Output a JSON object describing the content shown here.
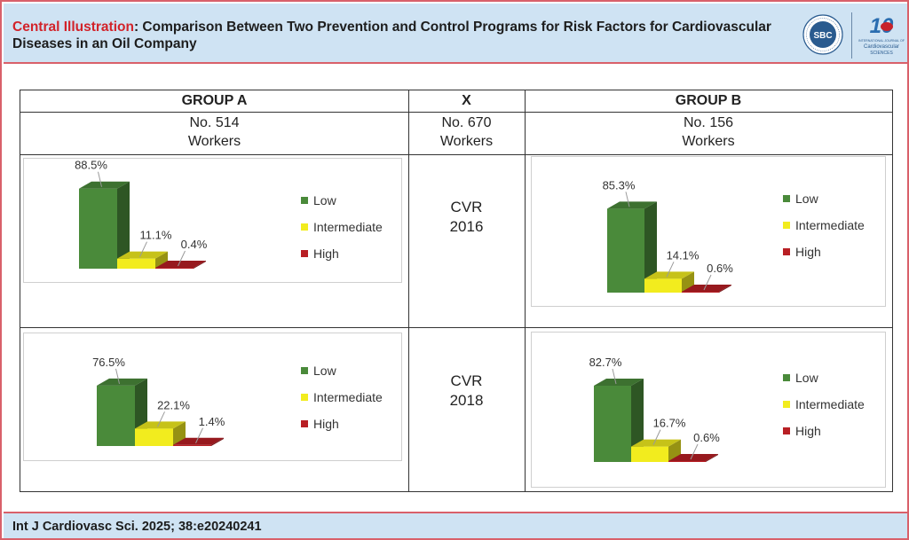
{
  "header": {
    "title_accent": "Central Illustration",
    "title_rest": ": Comparison Between Two Prevention and Control Programs for Risk Factors for Cardiovascular Diseases in an Oil Company",
    "logo_sbc_text": "SBC",
    "logo_ijcs_number": "10",
    "logo_ijcs_line1": "INTERNATIONAL JOURNAL OF",
    "logo_ijcs_line2": "Cardiovascular",
    "logo_ijcs_line3": "SCIENCES"
  },
  "table": {
    "group_a": {
      "title": "GROUP A",
      "count": "No. 514",
      "unit": "Workers"
    },
    "middle": {
      "title": "X",
      "count": "No. 670",
      "unit": "Workers"
    },
    "group_b": {
      "title": "GROUP B",
      "count": "No. 156",
      "unit": "Workers"
    },
    "rows": [
      {
        "cvr": "CVR",
        "year": "2016"
      },
      {
        "cvr": "CVR",
        "year": "2018"
      }
    ]
  },
  "colors": {
    "Low": "#4a8a3a",
    "Intermediate": "#f2ec1e",
    "High": "#b81f24"
  },
  "chart_data": [
    {
      "type": "bar",
      "group": "GROUP A",
      "period": "CVR 2016",
      "categories": [
        "Low",
        "Intermediate",
        "High"
      ],
      "values": [
        88.5,
        11.1,
        0.4
      ],
      "value_labels": [
        "88.5%",
        "11.1%",
        "0.4%"
      ],
      "legend": [
        "Low",
        "Intermediate",
        "High"
      ],
      "legend_position": "right"
    },
    {
      "type": "bar",
      "group": "GROUP B",
      "period": "CVR 2016",
      "categories": [
        "Low",
        "Intermediate",
        "High"
      ],
      "values": [
        85.3,
        14.1,
        0.6
      ],
      "value_labels": [
        "85.3%",
        "14.1%",
        "0.6%"
      ],
      "legend": [
        "Low",
        "Intermediate",
        "High"
      ],
      "legend_position": "right"
    },
    {
      "type": "bar",
      "group": "GROUP A",
      "period": "CVR 2018",
      "categories": [
        "Low",
        "Intermediate",
        "High"
      ],
      "values": [
        76.5,
        22.1,
        1.4
      ],
      "value_labels": [
        "76.5%",
        "22.1%",
        "1.4%"
      ],
      "legend": [
        "Low",
        "Intermediate",
        "High"
      ],
      "legend_position": "right"
    },
    {
      "type": "bar",
      "group": "GROUP B",
      "period": "CVR 2018",
      "categories": [
        "Low",
        "Intermediate",
        "High"
      ],
      "values": [
        82.7,
        16.7,
        0.6
      ],
      "value_labels": [
        "82.7%",
        "16.7%",
        "0.6%"
      ],
      "legend": [
        "Low",
        "Intermediate",
        "High"
      ],
      "legend_position": "right"
    }
  ],
  "footer": {
    "citation": "Int J Cardiovasc Sci. 2025; 38:e20240241"
  }
}
